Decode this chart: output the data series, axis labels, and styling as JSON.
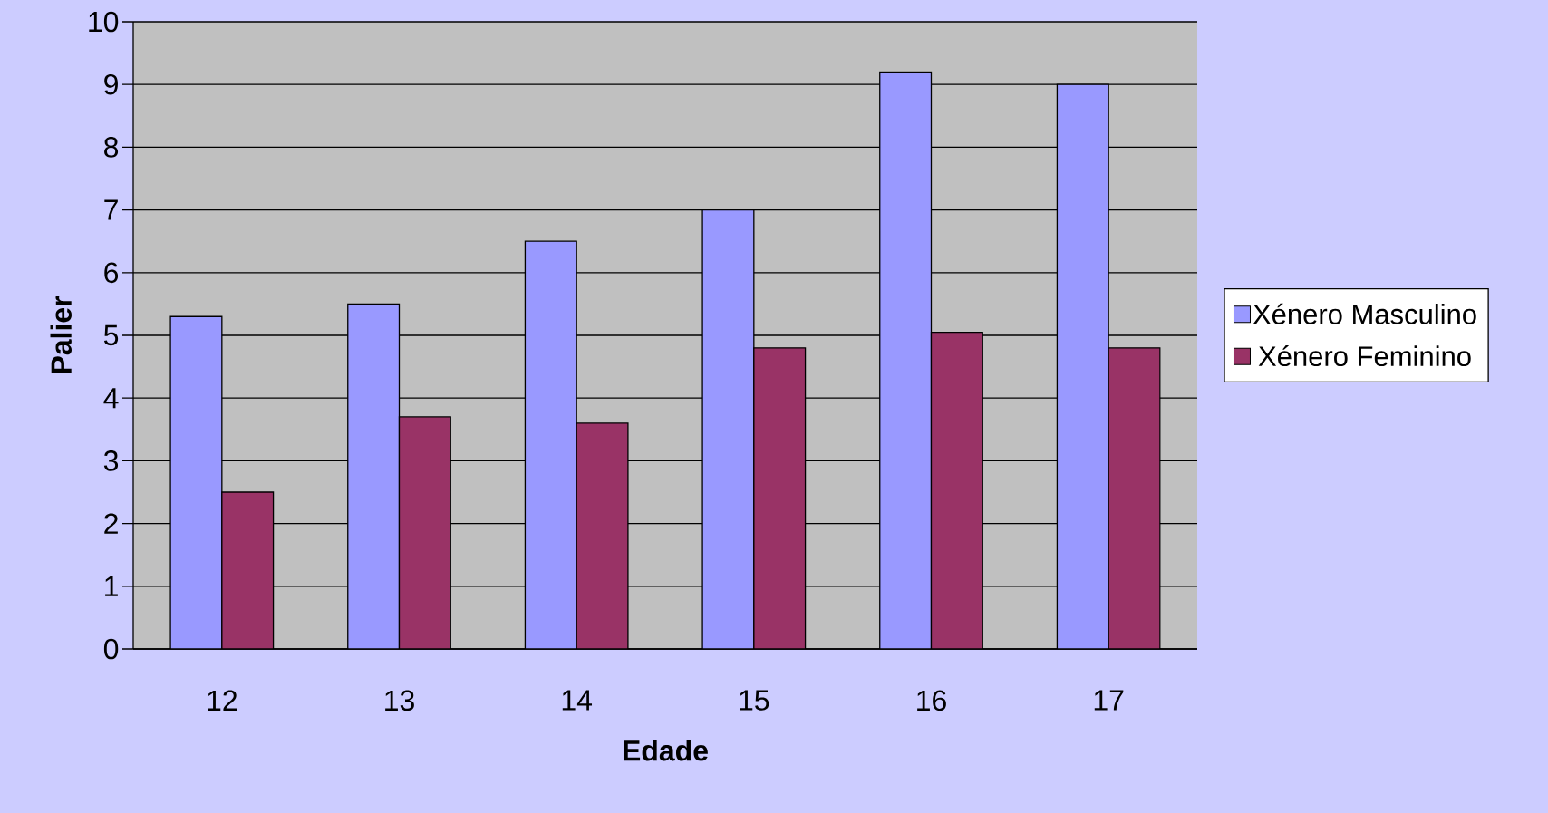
{
  "chart_data": {
    "type": "bar",
    "xlabel": "Edade",
    "ylabel": "Palier",
    "categories": [
      "12",
      "13",
      "14",
      "15",
      "16",
      "17"
    ],
    "series": [
      {
        "name": "Xénero Masculino",
        "color": "#9999ff",
        "values": [
          5.3,
          5.5,
          6.5,
          7.0,
          9.2,
          9.0
        ]
      },
      {
        "name": "Xénero Feminino",
        "color": "#993366",
        "values": [
          2.5,
          3.7,
          3.6,
          4.8,
          5.05,
          4.8
        ]
      }
    ],
    "ylim": [
      0,
      10
    ],
    "yticks": [
      0,
      1,
      2,
      3,
      4,
      5,
      6,
      7,
      8,
      9,
      10
    ],
    "grid": "y",
    "legend": "right"
  }
}
